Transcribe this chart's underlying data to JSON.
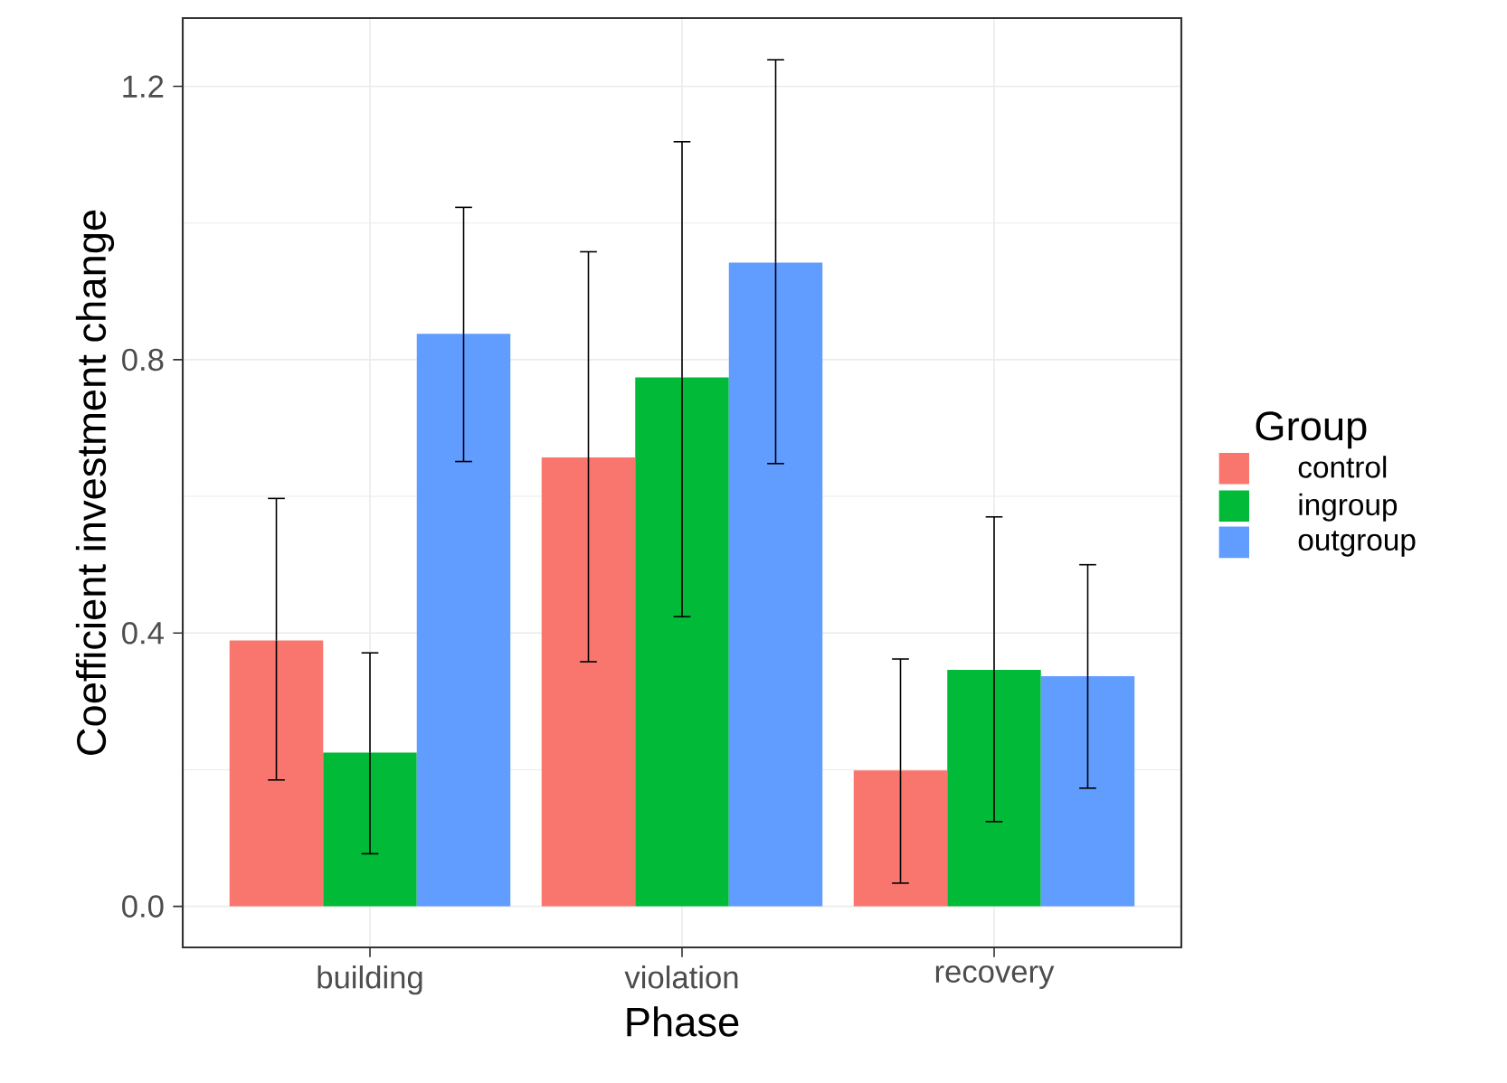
{
  "chart_data": {
    "type": "bar",
    "xlabel": "Phase",
    "ylabel": "Coefficient investment change",
    "legend_title": "Group",
    "categories": [
      "building",
      "violation",
      "recovery"
    ],
    "series": [
      {
        "name": "control",
        "color": "#f8766d",
        "values": [
          0.389,
          0.657,
          0.199
        ],
        "errors": [
          [
            0.185,
            0.597
          ],
          [
            0.358,
            0.958
          ],
          [
            0.034,
            0.362
          ]
        ]
      },
      {
        "name": "ingroup",
        "color": "#00ba38",
        "values": [
          0.225,
          0.774,
          0.346
        ],
        "errors": [
          [
            0.077,
            0.371
          ],
          [
            0.424,
            1.119
          ],
          [
            0.124,
            0.57
          ]
        ]
      },
      {
        "name": "outgroup",
        "color": "#619cff",
        "values": [
          0.838,
          0.942,
          0.337
        ],
        "errors": [
          [
            0.651,
            1.023
          ],
          [
            0.648,
            1.239
          ],
          [
            0.173,
            0.5
          ]
        ]
      }
    ],
    "ylim": [
      -0.06,
      1.3
    ],
    "yticks": [
      {
        "value": 0,
        "label": "0.0"
      },
      0.4,
      0.8,
      1.2
    ],
    "grid": true,
    "legend": "right"
  }
}
